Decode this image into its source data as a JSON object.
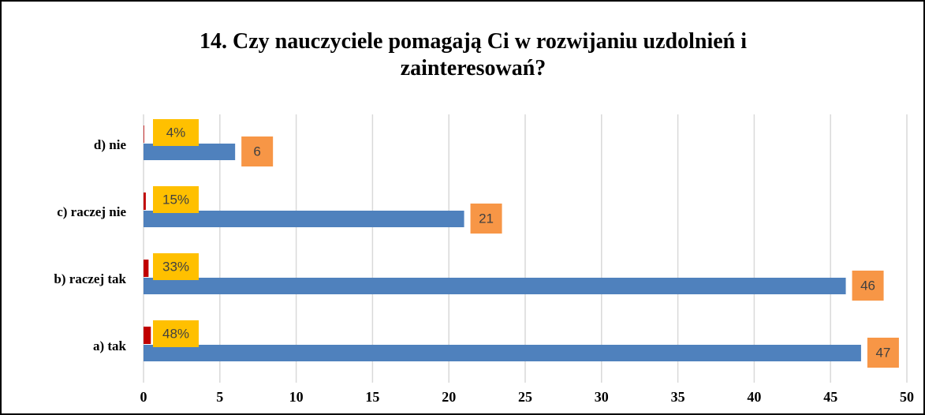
{
  "chart_data": {
    "type": "bar",
    "orientation": "horizontal",
    "title": "14. Czy nauczyciele pomagają Ci w rozwijaniu uzdolnień i zainteresowań?",
    "categories": [
      "a) tak",
      "b) raczej tak",
      "c) raczej nie",
      "d) nie"
    ],
    "series": [
      {
        "color": "#4f81bd",
        "values": [
          47,
          46,
          21,
          6
        ]
      },
      {
        "color": "#c00000",
        "values": [
          0.48,
          0.33,
          0.15,
          0.04
        ],
        "value_labels": [
          "48%",
          "33%",
          "15%",
          "4%"
        ]
      }
    ],
    "xlim": [
      0,
      50
    ],
    "xticks": [
      0,
      5,
      10,
      15,
      20,
      25,
      30,
      35,
      40,
      45,
      50
    ],
    "grid": true
  }
}
